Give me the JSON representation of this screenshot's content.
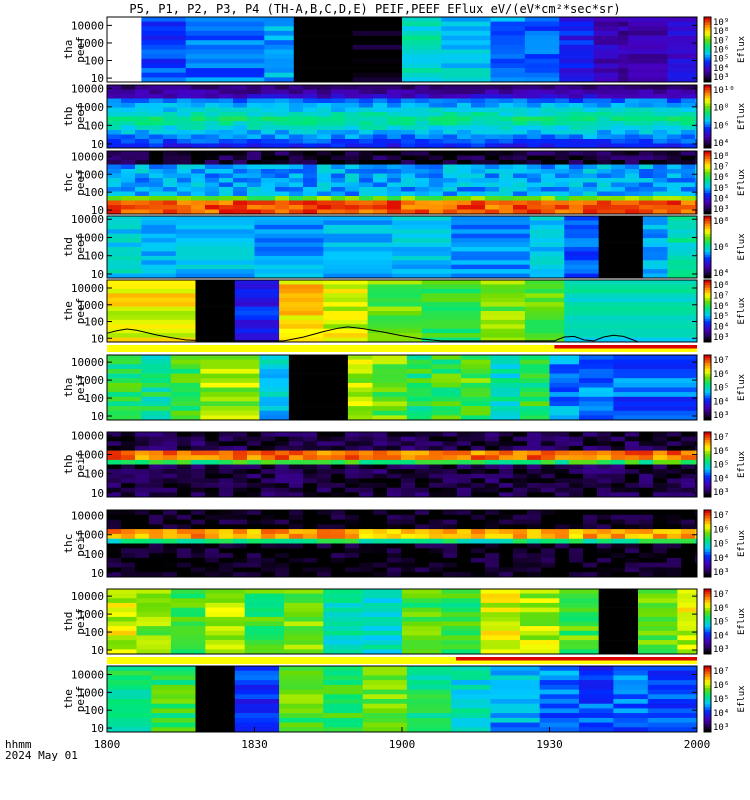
{
  "title": "P5, P1, P2, P3, P4 (TH-A,B,C,D,E) PEIF,PEEF EFlux eV/(eV*cm²*sec*sr)",
  "time_axis": {
    "ticks": [
      "1800",
      "1830",
      "1900",
      "1930",
      "2000"
    ],
    "label_line1": "hhmm",
    "label_line2": "2024 May 01"
  },
  "colorbar_label": "Eflux",
  "colors": {
    "background": "#ffffff",
    "mode_bar_yellow": "#ffff00",
    "mode_bar_red": "#dd0000"
  },
  "chart_data": {
    "type": "heatmap",
    "x_range_minutes_after_1800": [
      0,
      120
    ],
    "y_scale": "log",
    "panels": [
      {
        "id": "tha-peef",
        "label_lines": [
          "tha",
          "peef"
        ],
        "ylim": [
          6,
          30000
        ],
        "y_ticks": [
          "10000",
          "1000",
          "100",
          "10"
        ],
        "cbar_ticks": [
          "10⁹",
          "10⁸",
          "10⁷",
          "10⁶",
          "10⁵",
          "10⁴",
          "10³"
        ],
        "cbar_range": [
          3,
          9
        ],
        "seg_edges": [
          0,
          7,
          16,
          32,
          38,
          44,
          50,
          60,
          68,
          78,
          85,
          92,
          99,
          104,
          106,
          114,
          120
        ],
        "seg_base": [
          null,
          4.9,
          5.1,
          5.4,
          2.3,
          1.6,
          3.0,
          5.9,
          5.6,
          5.2,
          5.0,
          4.6,
          4.1,
          3.9,
          4.0,
          4.3
        ],
        "profile": "flat",
        "missing_before": 7
      },
      {
        "id": "thb-peef",
        "label_lines": [
          "thb",
          "peef"
        ],
        "ylim": [
          6,
          15000
        ],
        "y_ticks": [
          "10000",
          "1000",
          "100",
          "10"
        ],
        "cbar_ticks": [
          "10¹⁰",
          "10⁸",
          "10⁶",
          "10⁴"
        ],
        "cbar_range": [
          3,
          10
        ],
        "seg_edges": [
          0,
          120
        ],
        "seg_base": [
          5.5
        ],
        "profile": "band-center"
      },
      {
        "id": "thc-peef",
        "label_lines": [
          "thc",
          "peef"
        ],
        "ylim": [
          6,
          20000
        ],
        "y_ticks": [
          "10000",
          "1000",
          "100",
          "10"
        ],
        "cbar_ticks": [
          "10⁸",
          "10⁷",
          "10⁶",
          "10⁵",
          "10⁴",
          "10³"
        ],
        "cbar_range": [
          3,
          8
        ],
        "seg_edges": [
          0,
          120
        ],
        "seg_base": [
          5.2
        ],
        "profile": "rising-low"
      },
      {
        "id": "thd-peef",
        "label_lines": [
          "thd",
          "peef"
        ],
        "ylim": [
          6,
          15000
        ],
        "y_ticks": [
          "10000",
          "1000",
          "100",
          "10"
        ],
        "cbar_ticks": [
          "10⁸",
          "10⁶",
          "10⁴"
        ],
        "cbar_range": [
          3,
          9
        ],
        "seg_edges": [
          0,
          7,
          14,
          30,
          44,
          58,
          70,
          86,
          93,
          100,
          109,
          114,
          120
        ],
        "seg_base": [
          5.7,
          5.4,
          5.5,
          5.3,
          5.5,
          5.6,
          5.2,
          5.6,
          5.0,
          2.3,
          5.4,
          6.0
        ],
        "profile": "flat"
      },
      {
        "id": "the-peef",
        "label_lines": [
          "the",
          "peef"
        ],
        "ylim": [
          6,
          30000
        ],
        "y_ticks": [
          "10000",
          "1000",
          "100",
          "10"
        ],
        "cbar_ticks": [
          "10⁸",
          "10⁷",
          "10⁶",
          "10⁵",
          "10⁴",
          "10³"
        ],
        "cbar_range": [
          3,
          8
        ],
        "seg_edges": [
          0,
          18,
          26,
          35,
          44,
          53,
          64,
          76,
          85,
          93,
          120
        ],
        "seg_base": [
          6.8,
          2.4,
          4.3,
          7.0,
          6.7,
          6.2,
          5.9,
          6.3,
          6.1,
          5.4
        ],
        "profile": "flat",
        "overlay_line": [
          [
            0,
            20
          ],
          [
            2,
            28
          ],
          [
            4,
            36
          ],
          [
            6,
            30
          ],
          [
            8,
            22
          ],
          [
            10,
            16
          ],
          [
            13,
            11
          ],
          [
            16,
            8
          ],
          [
            20,
            7
          ],
          [
            36,
            7
          ],
          [
            40,
            12
          ],
          [
            44,
            25
          ],
          [
            47,
            40
          ],
          [
            49,
            48
          ],
          [
            52,
            38
          ],
          [
            56,
            24
          ],
          [
            60,
            14
          ],
          [
            64,
            9
          ],
          [
            68,
            7
          ],
          [
            91,
            7
          ],
          [
            93,
            12
          ],
          [
            95,
            13
          ],
          [
            97,
            8
          ],
          [
            99,
            7
          ],
          [
            101,
            12
          ],
          [
            103,
            15
          ],
          [
            105,
            13
          ],
          [
            107,
            8
          ],
          [
            108,
            6
          ]
        ]
      },
      {
        "id": "tha-peif",
        "label_lines": [
          "tha",
          "peif"
        ],
        "ylim": [
          6,
          25000
        ],
        "y_ticks": [
          "10000",
          "1000",
          "100",
          "10"
        ],
        "cbar_ticks": [
          "10⁷",
          "10⁶",
          "10⁵",
          "10⁴",
          "10³"
        ],
        "cbar_range": [
          3,
          7.5
        ],
        "seg_edges": [
          0,
          7,
          13,
          19,
          31,
          37,
          43,
          49,
          54,
          61,
          66,
          72,
          78,
          84,
          90,
          96,
          103,
          120
        ],
        "seg_base": [
          5.6,
          5.4,
          5.7,
          6.1,
          5.0,
          2.3,
          1.7,
          6.2,
          5.9,
          5.6,
          5.7,
          5.8,
          5.2,
          5.6,
          4.7,
          4.6,
          4.5
        ],
        "profile": "flat"
      },
      {
        "id": "thb-peif",
        "label_lines": [
          "thb",
          "peif"
        ],
        "ylim": [
          6,
          15000
        ],
        "y_ticks": [
          "10000",
          "1000",
          "100",
          "10"
        ],
        "cbar_ticks": [
          "10⁷",
          "10⁶",
          "10⁵",
          "10⁴",
          "10³"
        ],
        "cbar_range": [
          3,
          7.5
        ],
        "seg_edges": [
          0,
          120
        ],
        "seg_base": [
          3.2
        ],
        "profile": "band-1000"
      },
      {
        "id": "thc-peif",
        "label_lines": [
          "thc",
          "peif"
        ],
        "ylim": [
          6,
          20000
        ],
        "y_ticks": [
          "10000",
          "1000",
          "100",
          "10"
        ],
        "cbar_ticks": [
          "10⁷",
          "10⁶",
          "10⁵",
          "10⁴",
          "10³"
        ],
        "cbar_range": [
          3,
          7.5
        ],
        "seg_edges": [
          0,
          120
        ],
        "seg_base": [
          3.0
        ],
        "profile": "band-1000"
      },
      {
        "id": "thd-peif",
        "label_lines": [
          "thd",
          "peif"
        ],
        "ylim": [
          6,
          25000
        ],
        "y_ticks": [
          "10000",
          "1000",
          "100",
          "10"
        ],
        "cbar_ticks": [
          "10⁷",
          "10⁶",
          "10⁵",
          "10⁴",
          "10³"
        ],
        "cbar_range": [
          3,
          7.5
        ],
        "seg_edges": [
          0,
          6,
          13,
          20,
          28,
          36,
          44,
          52,
          60,
          68,
          76,
          84,
          92,
          100,
          108,
          116,
          120
        ],
        "seg_base": [
          6.3,
          6.0,
          5.8,
          6.1,
          5.7,
          6.0,
          5.3,
          5.2,
          5.8,
          5.7,
          6.3,
          6.2,
          5.8,
          2.2,
          5.9,
          6.3
        ],
        "profile": "flat"
      },
      {
        "id": "the-peif",
        "label_lines": [
          "the",
          "peif"
        ],
        "ylim": [
          6,
          30000
        ],
        "y_ticks": [
          "10000",
          "1000",
          "100",
          "10"
        ],
        "cbar_ticks": [
          "10⁷",
          "10⁶",
          "10⁵",
          "10⁴",
          "10³"
        ],
        "cbar_range": [
          3,
          7.5
        ],
        "seg_edges": [
          0,
          9,
          18,
          26,
          35,
          44,
          52,
          61,
          70,
          78,
          88,
          96,
          103,
          110,
          120
        ],
        "seg_base": [
          5.5,
          5.7,
          2.3,
          4.3,
          5.8,
          5.7,
          5.9,
          5.5,
          5.1,
          4.8,
          4.6,
          4.5,
          4.5,
          4.4
        ],
        "profile": "flat"
      }
    ],
    "mode_bars": [
      {
        "id": "the-peef-mode",
        "red_from_minute": 91
      },
      {
        "id": "thd-peif-mode",
        "red_from_minute": 71
      }
    ]
  }
}
